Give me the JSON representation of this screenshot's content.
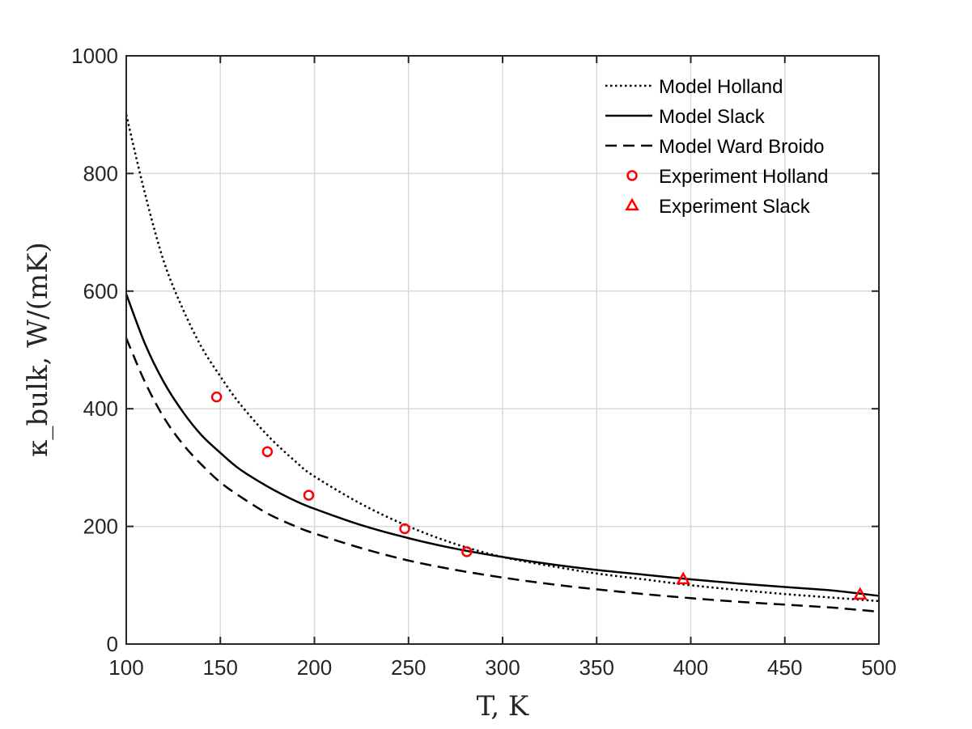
{
  "chart_data": {
    "type": "line",
    "title": "",
    "xlabel": "T, K",
    "ylabel": "κ_bulk, W/(mK)",
    "xlim": [
      100,
      500
    ],
    "ylim": [
      0,
      1000
    ],
    "xticks": [
      100,
      150,
      200,
      250,
      300,
      350,
      400,
      450,
      500
    ],
    "yticks": [
      0,
      200,
      400,
      600,
      800,
      1000
    ],
    "grid": true,
    "legend_position": "top-right",
    "series": [
      {
        "name": "Model Holland",
        "style": "dotted",
        "color": "#000000",
        "x": [
          100,
          110,
          120,
          130,
          140,
          150,
          160,
          175,
          190,
          200,
          225,
          250,
          275,
          300,
          325,
          350,
          375,
          400,
          425,
          450,
          475,
          500
        ],
        "y": [
          900,
          765,
          650,
          570,
          505,
          455,
          410,
          355,
          310,
          285,
          238,
          200,
          170,
          148,
          133,
          120,
          110,
          100,
          92,
          85,
          79,
          73
        ]
      },
      {
        "name": "Model Slack",
        "style": "solid",
        "color": "#000000",
        "x": [
          100,
          110,
          120,
          130,
          140,
          150,
          160,
          175,
          190,
          200,
          225,
          250,
          275,
          300,
          325,
          350,
          375,
          400,
          425,
          450,
          475,
          500
        ],
        "y": [
          595,
          510,
          445,
          395,
          355,
          325,
          298,
          268,
          243,
          230,
          202,
          180,
          162,
          148,
          136,
          126,
          118,
          110,
          103,
          97,
          91,
          82
        ]
      },
      {
        "name": "Model Ward Broido",
        "style": "dashed",
        "color": "#000000",
        "x": [
          100,
          110,
          120,
          130,
          140,
          150,
          160,
          175,
          190,
          200,
          225,
          250,
          275,
          300,
          325,
          350,
          375,
          400,
          425,
          450,
          475,
          500
        ],
        "y": [
          520,
          445,
          385,
          340,
          305,
          275,
          252,
          222,
          200,
          188,
          163,
          142,
          126,
          113,
          102,
          93,
          85,
          78,
          72,
          67,
          62,
          55
        ]
      },
      {
        "name": "Experiment Holland",
        "style": "markers-circle",
        "color": "#ff0000",
        "x": [
          148,
          175,
          197,
          248,
          281
        ],
        "y": [
          420,
          327,
          253,
          196,
          157
        ]
      },
      {
        "name": "Experiment Slack",
        "style": "markers-triangle",
        "color": "#ff0000",
        "x": [
          396,
          490
        ],
        "y": [
          110,
          84
        ]
      }
    ]
  }
}
